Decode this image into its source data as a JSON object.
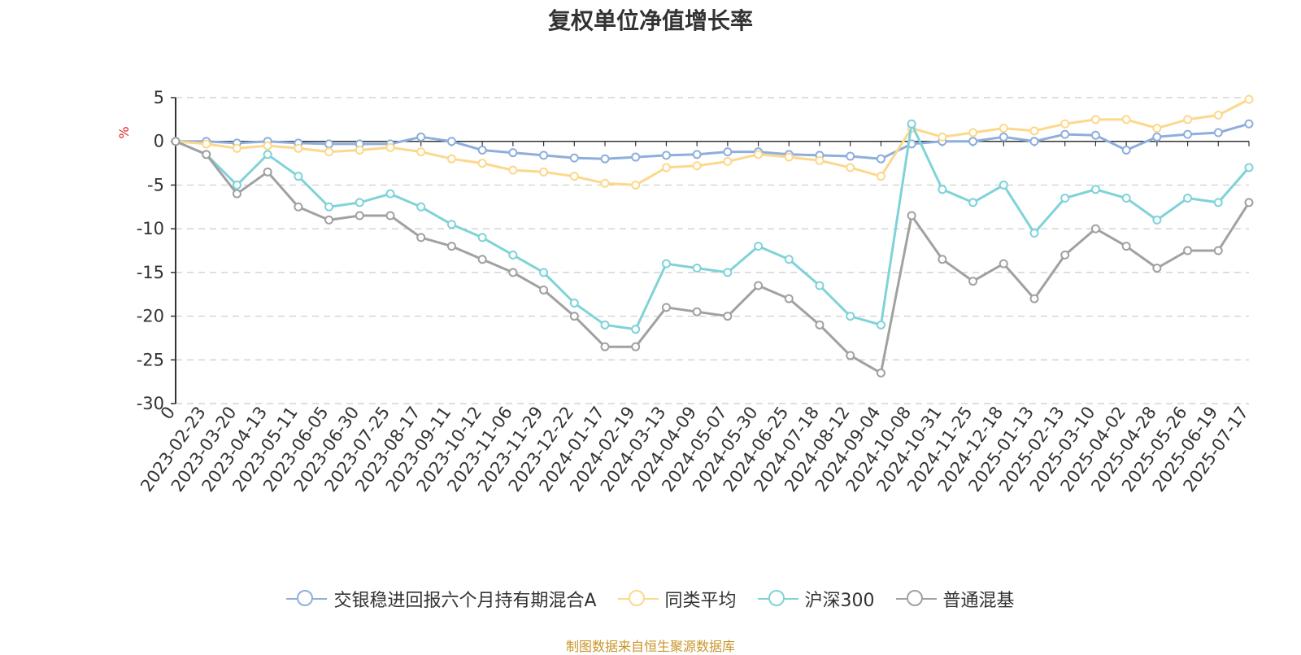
{
  "chart_data": {
    "type": "line",
    "title": "复权单位净值增长率",
    "ylabel": "%",
    "xlabel": "",
    "ylim": [
      -30,
      5
    ],
    "yticks": [
      5,
      0,
      -5,
      -10,
      -15,
      -20,
      -25,
      -30
    ],
    "grid": true,
    "legend_position": "bottom-center",
    "source_note": "制图数据来自恒生聚源数据库",
    "x_tick_labels": [
      "0",
      "2023-02-23",
      "2023-03-20",
      "2023-04-13",
      "2023-05-11",
      "2023-06-05",
      "2023-06-30",
      "2023-07-25",
      "2023-08-17",
      "2023-09-11",
      "2023-10-12",
      "2023-11-06",
      "2023-11-29",
      "2023-12-22",
      "2024-01-17",
      "2024-02-19",
      "2024-03-13",
      "2024-04-09",
      "2024-05-07",
      "2024-05-30",
      "2024-06-25",
      "2024-07-18",
      "2024-08-12",
      "2024-09-04",
      "2024-10-08",
      "2024-10-31",
      "2024-11-25",
      "2024-12-18",
      "2025-01-13",
      "2025-02-13",
      "2025-03-10",
      "2025-04-02",
      "2025-04-28",
      "2025-05-26",
      "2025-06-19",
      "2025-07-17"
    ],
    "x": [
      "0",
      "2023-02-23",
      "2023-03-20",
      "2023-04-13",
      "2023-05-11",
      "2023-06-05",
      "2023-06-30",
      "2023-07-25",
      "2023-08-17",
      "2023-09-11",
      "2023-10-12",
      "2023-11-06",
      "2023-11-29",
      "2023-12-22",
      "2024-01-17",
      "2024-02-19",
      "2024-03-13",
      "2024-04-09",
      "2024-05-07",
      "2024-05-30",
      "2024-06-25",
      "2024-07-18",
      "2024-08-12",
      "2024-09-04",
      "2024-10-08",
      "2024-10-31",
      "2024-11-25",
      "2024-12-18",
      "2025-01-13",
      "2025-02-13",
      "2025-03-10",
      "2025-04-02",
      "2025-04-28",
      "2025-05-26",
      "2025-06-19",
      "2025-07-17"
    ],
    "series": [
      {
        "name": "交银稳进回报六个月持有期混合A",
        "color": "#8eaedc",
        "values": [
          0,
          0,
          -0.2,
          0,
          -0.2,
          -0.3,
          -0.3,
          -0.3,
          0.5,
          0,
          -1.0,
          -1.3,
          -1.6,
          -1.9,
          -2.0,
          -1.8,
          -1.6,
          -1.5,
          -1.2,
          -1.2,
          -1.5,
          -1.6,
          -1.7,
          -2.0,
          -0.3,
          0,
          0,
          0.5,
          0,
          0.8,
          0.7,
          -1.0,
          0.5,
          0.8,
          1.0,
          2.0
        ]
      },
      {
        "name": "同类平均",
        "color": "#fcd88c",
        "values": [
          0,
          -0.3,
          -0.8,
          -0.5,
          -0.8,
          -1.2,
          -1.0,
          -0.7,
          -1.2,
          -2.0,
          -2.5,
          -3.3,
          -3.5,
          -4.0,
          -4.8,
          -5.0,
          -3.0,
          -2.8,
          -2.3,
          -1.5,
          -1.8,
          -2.2,
          -3.0,
          -4.0,
          1.5,
          0.5,
          1.0,
          1.5,
          1.2,
          2.0,
          2.5,
          2.5,
          1.5,
          2.5,
          3.0,
          4.8
        ]
      },
      {
        "name": "沪深300",
        "color": "#7fd3d8",
        "values": [
          0,
          -1.5,
          -5.0,
          -1.5,
          -4.0,
          -7.5,
          -7.0,
          -6.0,
          -7.5,
          -9.5,
          -11.0,
          -13.0,
          -15.0,
          -18.5,
          -21.0,
          -21.5,
          -14.0,
          -14.5,
          -15.0,
          -12.0,
          -13.5,
          -16.5,
          -20.0,
          -21.0,
          2.0,
          -5.5,
          -7.0,
          -5.0,
          -10.5,
          -6.5,
          -5.5,
          -6.5,
          -9.0,
          -6.5,
          -7.0,
          -3.0
        ]
      },
      {
        "name": "普通混基",
        "color": "#a1a1a1",
        "values": [
          0,
          -1.5,
          -6.0,
          -3.5,
          -7.5,
          -9.0,
          -8.5,
          -8.5,
          -11.0,
          -12.0,
          -13.5,
          -15.0,
          -17.0,
          -20.0,
          -23.5,
          -23.5,
          -19.0,
          -19.5,
          -20.0,
          -16.5,
          -18.0,
          -21.0,
          -24.5,
          -26.5,
          -8.5,
          -13.5,
          -16.0,
          -14.0,
          -18.0,
          -13.0,
          -10.0,
          -12.0,
          -14.5,
          -12.5,
          -12.5,
          -7.0
        ]
      }
    ]
  }
}
